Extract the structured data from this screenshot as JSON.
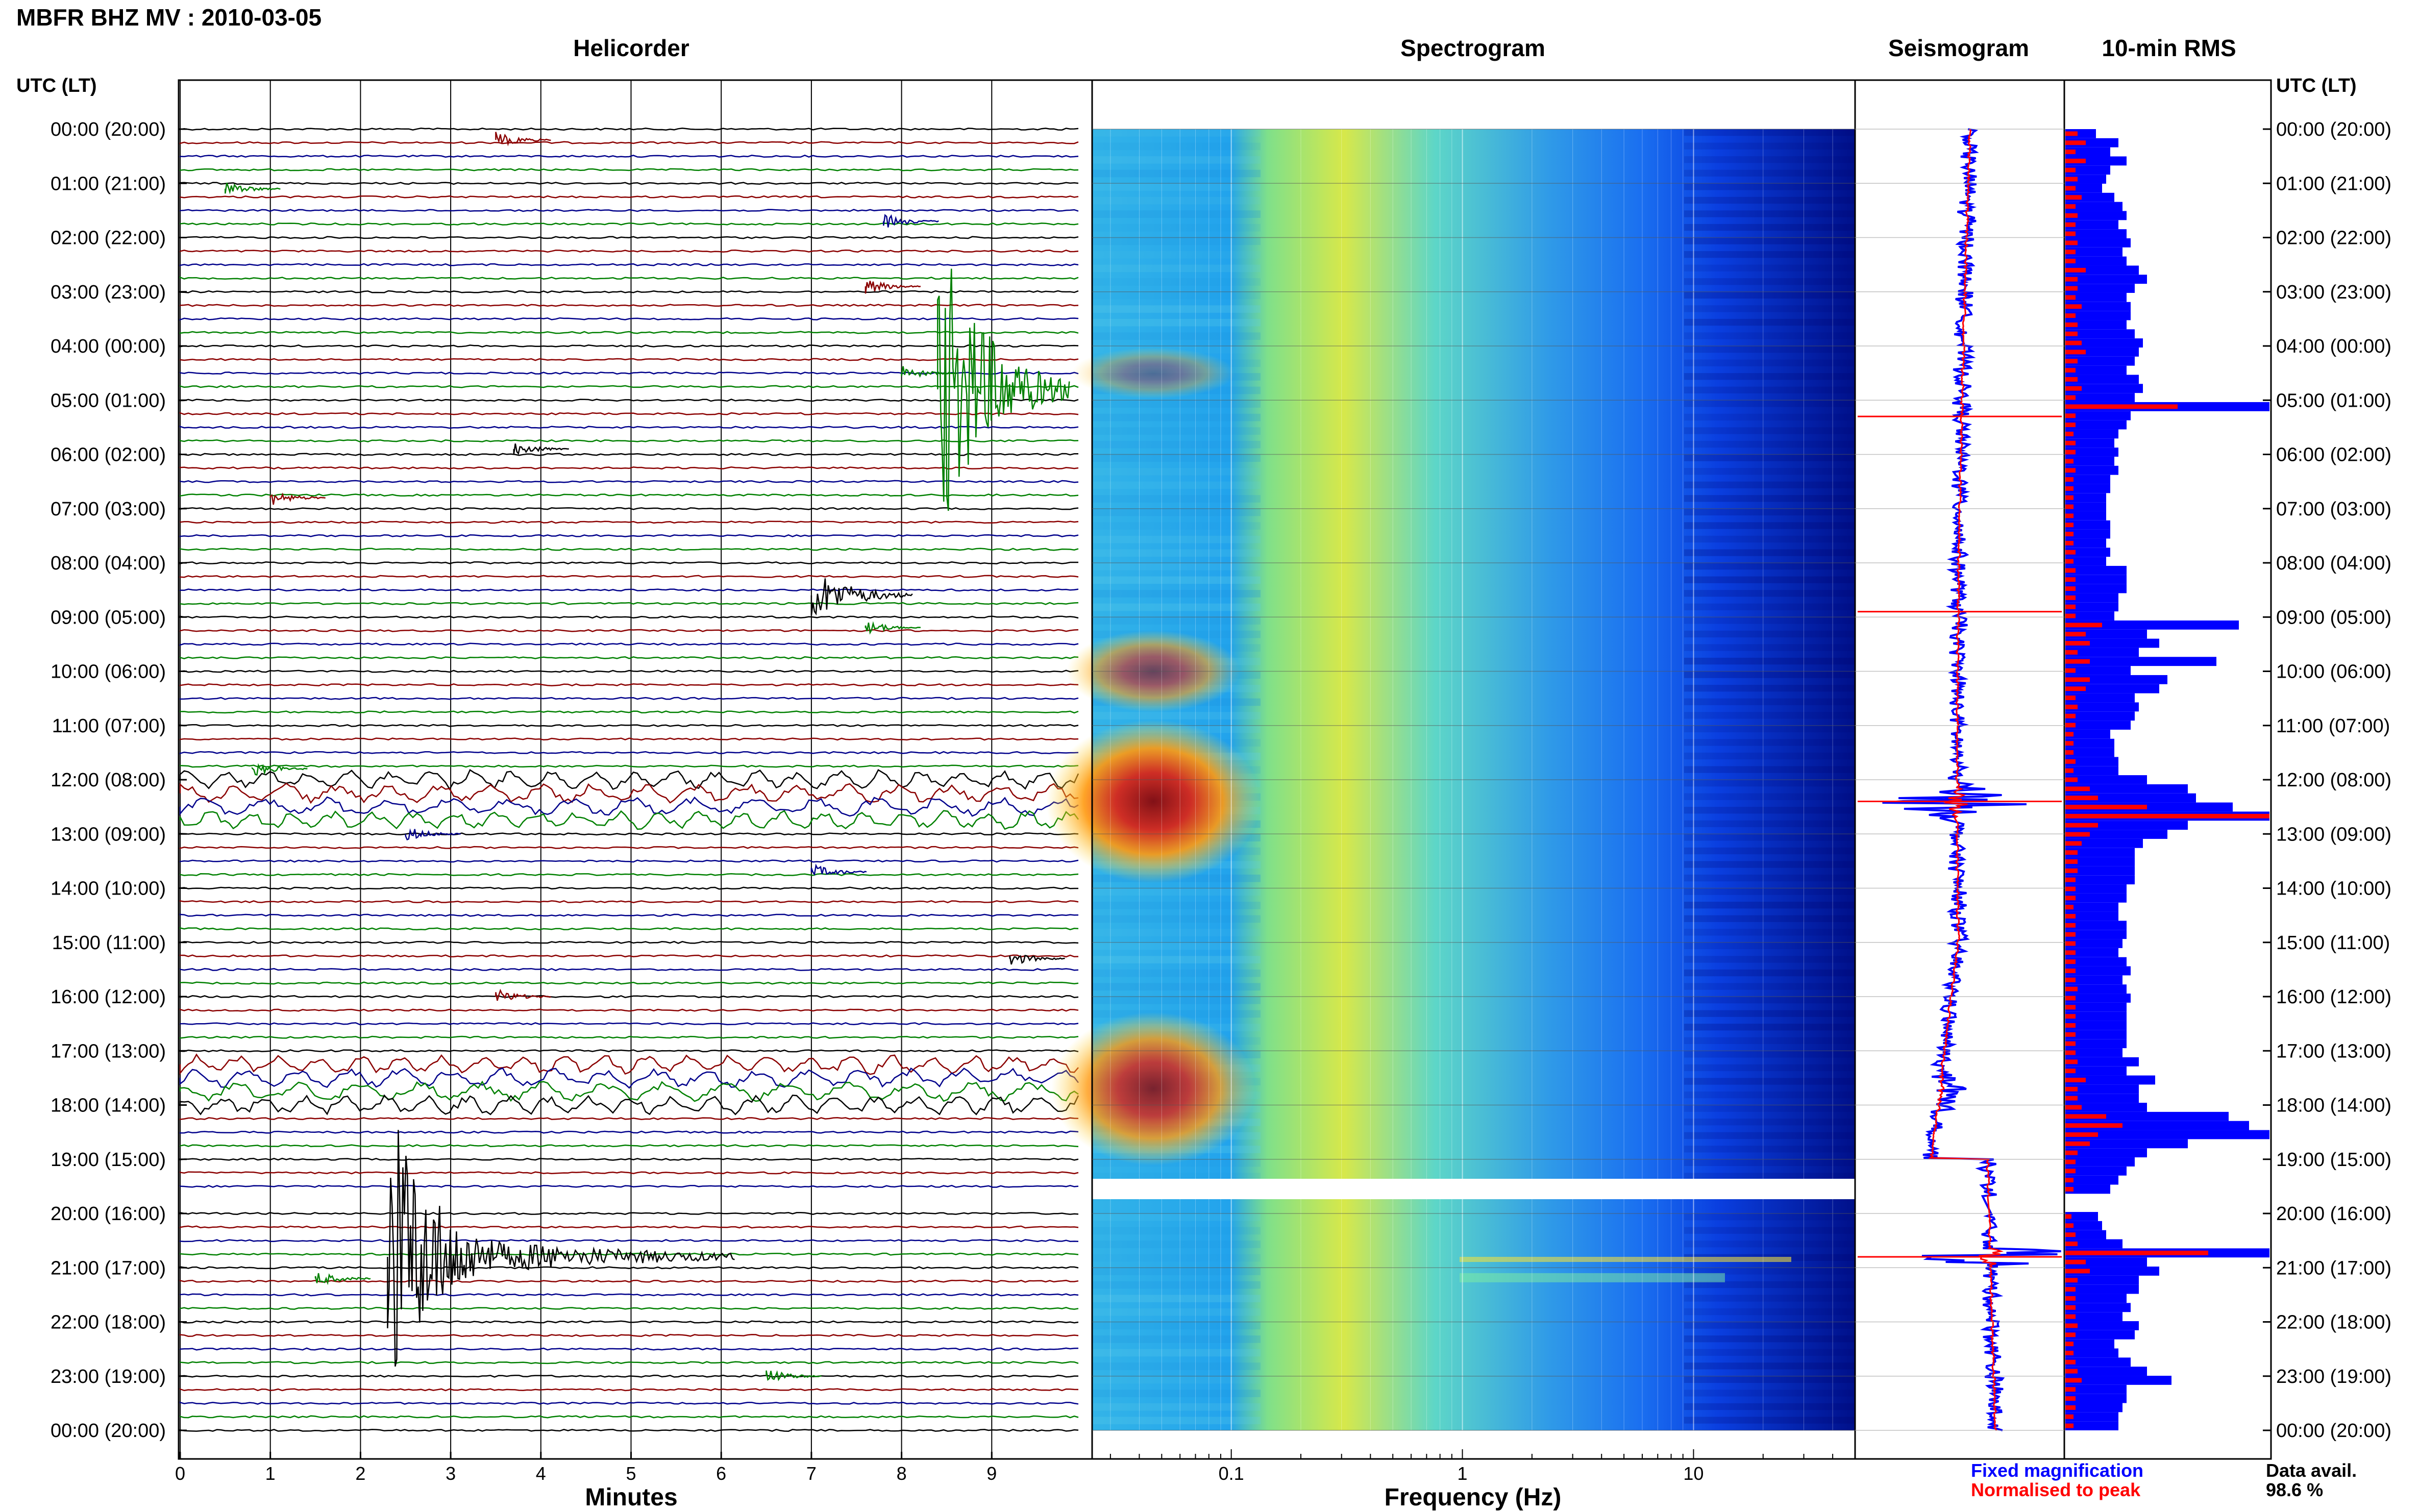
{
  "figure_title": "MBFR BHZ MV : 2010-03-05",
  "panels": {
    "helicorder": "Helicorder",
    "spectrogram": "Spectrogram",
    "seismogram": "Seismogram",
    "rms": "10-min RMS"
  },
  "axis_labels": {
    "time_left": "UTC (LT)",
    "time_right": "UTC (LT)",
    "minutes": "Minutes",
    "frequency": "Frequency (Hz)"
  },
  "legend": {
    "fixed": "Fixed magnification",
    "normalised": "Normalised to peak",
    "data_avail_label": "Data avail.",
    "data_avail_value": "98.6 %"
  },
  "colors": {
    "blue": "#0000ff",
    "red": "#ff0000",
    "trace_black": "#000000",
    "trace_red": "#8b0000",
    "trace_blue": "#00008b",
    "trace_green": "#008000"
  },
  "chart_data": {
    "type": "composite",
    "time_ticks": [
      "00:00 (20:00)",
      "01:00 (21:00)",
      "02:00 (22:00)",
      "03:00 (23:00)",
      "04:00 (00:00)",
      "05:00 (01:00)",
      "06:00 (02:00)",
      "07:00 (03:00)",
      "08:00 (04:00)",
      "09:00 (05:00)",
      "10:00 (06:00)",
      "11:00 (07:00)",
      "12:00 (08:00)",
      "13:00 (09:00)",
      "14:00 (10:00)",
      "15:00 (11:00)",
      "16:00 (12:00)",
      "17:00 (13:00)",
      "18:00 (14:00)",
      "19:00 (15:00)",
      "20:00 (16:00)",
      "21:00 (17:00)",
      "22:00 (18:00)",
      "23:00 (19:00)",
      "00:00 (20:00)"
    ],
    "minute_ticks": [
      "0",
      "1",
      "2",
      "3",
      "4",
      "5",
      "6",
      "7",
      "8",
      "9"
    ],
    "frequency_ticks": [
      "0.1",
      "1",
      "10"
    ],
    "frequency_range_hz": [
      0.025,
      50
    ],
    "data_gap_utc_hours": [
      19.7,
      20.0
    ],
    "helicorder_events": [
      {
        "hour": 0.2,
        "minute": 3.5,
        "color": "red"
      },
      {
        "hour": 1.1,
        "minute": 0.5,
        "color": "green"
      },
      {
        "hour": 1.7,
        "minute": 7.8,
        "color": "blue"
      },
      {
        "hour": 2.9,
        "minute": 7.6,
        "color": "red"
      },
      {
        "hour": 4.5,
        "minute": 8.0,
        "color": "green"
      },
      {
        "hour": 4.8,
        "minute": 8.4,
        "color": "green"
      },
      {
        "hour": 5.9,
        "minute": 3.7,
        "color": "black"
      },
      {
        "hour": 6.8,
        "minute": 1.0,
        "color": "red"
      },
      {
        "hour": 8.6,
        "minute": 7.0,
        "color": "black"
      },
      {
        "hour": 9.2,
        "minute": 7.6,
        "color": "green"
      },
      {
        "hour": 11.8,
        "minute": 0.8,
        "color": "green"
      },
      {
        "hour": 13.0,
        "minute": 2.5,
        "color": "blue"
      },
      {
        "hour": 13.7,
        "minute": 7.0,
        "color": "blue"
      },
      {
        "hour": 15.3,
        "minute": 9.2,
        "color": "black"
      },
      {
        "hour": 16.0,
        "minute": 3.5,
        "color": "red"
      },
      {
        "hour": 20.8,
        "minute": 2.3,
        "color": "black"
      },
      {
        "hour": 21.2,
        "minute": 1.5,
        "color": "green"
      },
      {
        "hour": 23.0,
        "minute": 6.5,
        "color": "green"
      }
    ],
    "rms_fixed": [
      0.15,
      0.26,
      0.22,
      0.3,
      0.22,
      0.2,
      0.18,
      0.24,
      0.28,
      0.3,
      0.26,
      0.3,
      0.32,
      0.28,
      0.3,
      0.36,
      0.4,
      0.34,
      0.3,
      0.32,
      0.32,
      0.3,
      0.34,
      0.38,
      0.36,
      0.34,
      0.3,
      0.36,
      0.38,
      0.34,
      1.0,
      0.32,
      0.3,
      0.26,
      0.24,
      0.26,
      0.24,
      0.26,
      0.22,
      0.22,
      0.2,
      0.2,
      0.2,
      0.22,
      0.22,
      0.2,
      0.22,
      0.2,
      0.3,
      0.3,
      0.3,
      0.26,
      0.26,
      0.24,
      0.85,
      0.4,
      0.46,
      0.36,
      0.74,
      0.32,
      0.5,
      0.46,
      0.34,
      0.36,
      0.34,
      0.32,
      0.22,
      0.24,
      0.24,
      0.26,
      0.26,
      0.4,
      0.6,
      0.64,
      0.82,
      1.0,
      0.6,
      0.5,
      0.38,
      0.34,
      0.34,
      0.34,
      0.34,
      0.3,
      0.3,
      0.26,
      0.26,
      0.3,
      0.3,
      0.28,
      0.26,
      0.3,
      0.32,
      0.28,
      0.3,
      0.32,
      0.3,
      0.3,
      0.3,
      0.3,
      0.3,
      0.28,
      0.36,
      0.3,
      0.44,
      0.36,
      0.36,
      0.4,
      0.8,
      0.9,
      1.0,
      0.6,
      0.4,
      0.34,
      0.3,
      0.26,
      0.22,
      0.0,
      0.0,
      0.16,
      0.18,
      0.2,
      0.28,
      1.0,
      0.4,
      0.46,
      0.36,
      0.36,
      0.3,
      0.32,
      0.28,
      0.36,
      0.34,
      0.24,
      0.26,
      0.32,
      0.4,
      0.52,
      0.3,
      0.3,
      0.28,
      0.26,
      0.26
    ],
    "rms_norm_peak": [
      0.06,
      0.1,
      0.05,
      0.1,
      0.05,
      0.06,
      0.05,
      0.08,
      0.05,
      0.06,
      0.05,
      0.05,
      0.06,
      0.05,
      0.05,
      0.1,
      0.06,
      0.06,
      0.05,
      0.08,
      0.05,
      0.06,
      0.06,
      0.08,
      0.1,
      0.06,
      0.05,
      0.06,
      0.08,
      0.05,
      0.55,
      0.05,
      0.05,
      0.04,
      0.05,
      0.05,
      0.04,
      0.05,
      0.04,
      0.04,
      0.04,
      0.04,
      0.04,
      0.04,
      0.04,
      0.04,
      0.05,
      0.04,
      0.05,
      0.05,
      0.05,
      0.05,
      0.05,
      0.05,
      0.18,
      0.1,
      0.12,
      0.06,
      0.12,
      0.05,
      0.12,
      0.1,
      0.05,
      0.06,
      0.05,
      0.05,
      0.04,
      0.04,
      0.04,
      0.05,
      0.04,
      0.06,
      0.12,
      0.16,
      0.4,
      1.0,
      0.16,
      0.12,
      0.08,
      0.06,
      0.06,
      0.06,
      0.05,
      0.05,
      0.05,
      0.04,
      0.05,
      0.05,
      0.05,
      0.05,
      0.05,
      0.05,
      0.05,
      0.05,
      0.06,
      0.05,
      0.05,
      0.05,
      0.05,
      0.05,
      0.05,
      0.05,
      0.06,
      0.05,
      0.1,
      0.06,
      0.06,
      0.08,
      0.2,
      0.28,
      0.16,
      0.12,
      0.06,
      0.05,
      0.05,
      0.04,
      0.04,
      0.0,
      0.0,
      0.03,
      0.04,
      0.05,
      0.06,
      0.7,
      0.1,
      0.12,
      0.06,
      0.05,
      0.05,
      0.05,
      0.05,
      0.06,
      0.05,
      0.04,
      0.04,
      0.05,
      0.06,
      0.08,
      0.05,
      0.05,
      0.05,
      0.04,
      0.04
    ]
  }
}
